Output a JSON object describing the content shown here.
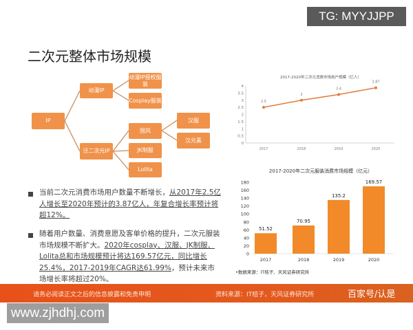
{
  "badge": "TG: MYYJJPP",
  "title": "二次元整体市场规模",
  "diagram": {
    "root": "IP",
    "l1": [
      "动漫IP",
      "泛二次元IP"
    ],
    "anime_children": [
      "动漫IP授权服装",
      "Cosplay服装"
    ],
    "pan_children": [
      "国风",
      "JK制服",
      "Lolita"
    ],
    "guofeng_children": [
      "汉服",
      "汉元素"
    ]
  },
  "bullets": [
    {
      "plain": "当前二次元消费市场用户数量不断增长，",
      "underlined": "从2017年2.5亿人增长至2020年预计的3.87亿人，年复合增长率预计将超12%。"
    },
    {
      "plain": "随着用户数量、消费意愿及客单价格的提升，二次元服装市场规模不断扩大。",
      "underlined": "2020年cosplay、汉服、JK制服、Lolita总和市场规模预计将达169.57亿元，同比增长25.4%，2017-2019年CAGR达61.99%",
      "tail": "，预计未来市场增长率将超过20%。"
    }
  ],
  "chart_data": [
    {
      "type": "line",
      "title": "2017-2020年二次元消费市场用户规模（亿人）",
      "categories": [
        "2017",
        "2018",
        "2019",
        "2020"
      ],
      "values": [
        2.5,
        3,
        3.4,
        3.87
      ],
      "ylim": [
        0,
        4
      ],
      "yticks": [
        "0",
        "0.5",
        "1",
        "1.5",
        "2",
        "2.5",
        "3",
        "3.5",
        "4"
      ],
      "data_labels": [
        "2.5",
        "3",
        "3.4",
        "3.87"
      ],
      "color": "#e07b39"
    },
    {
      "type": "bar",
      "title": "2017-2020年二次元服装消费市场规模（亿元）",
      "categories": [
        "2017",
        "2018",
        "2019",
        "2020"
      ],
      "values": [
        51.52,
        70.95,
        135.2,
        169.57
      ],
      "ylim": [
        0,
        180
      ],
      "yticks": [
        "0",
        "20",
        "40",
        "60",
        "80",
        "100",
        "120",
        "140",
        "160",
        "180"
      ],
      "data_labels": [
        "51.52",
        "70.95",
        "135.2",
        "169.57"
      ],
      "color": "#f28a2a",
      "source": "•数据来源：IT桔子、天风证券研究所"
    }
  ],
  "footer": {
    "disclaimer": "请务必阅读正文之后的信息披露和免责申明",
    "source": "资料来源：IT桔子，天风证券研究所",
    "logo": "百家号/认是"
  },
  "watermark": "www.zjhdhj.com"
}
